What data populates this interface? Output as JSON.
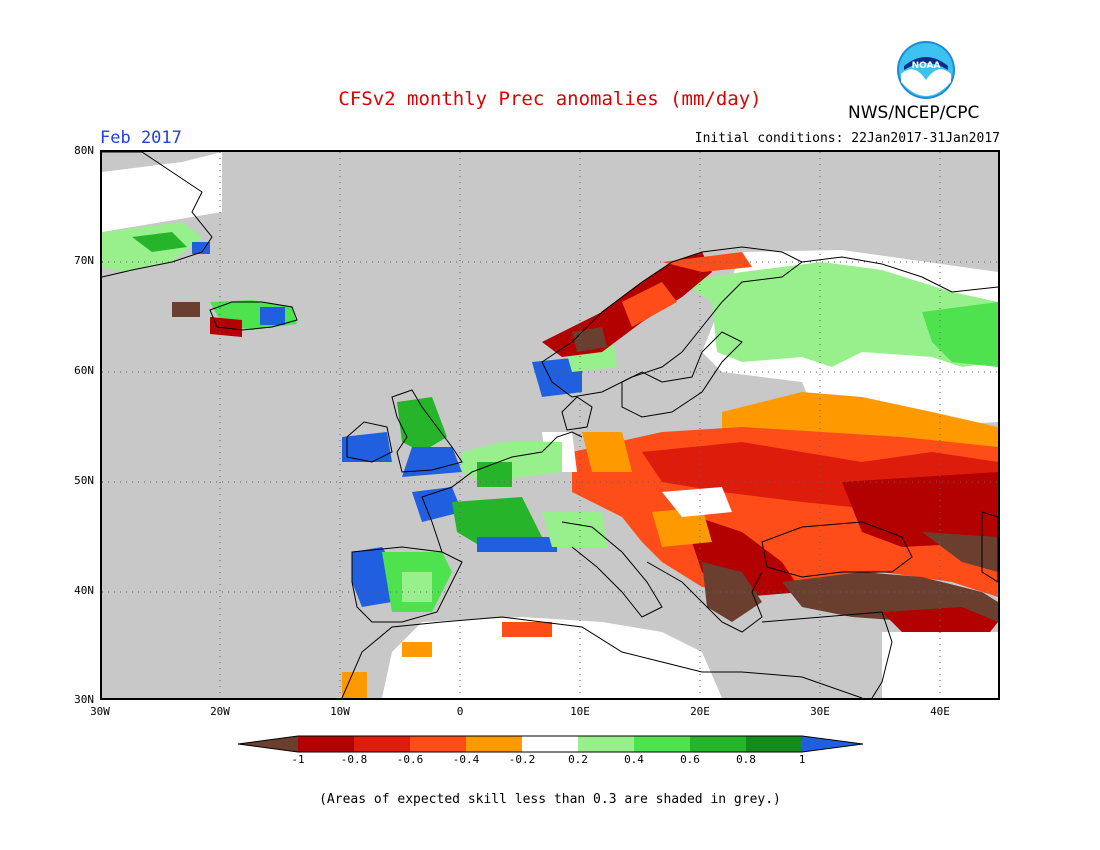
{
  "header": {
    "title": "CFSv2 monthly Prec anomalies (mm/day)",
    "agency": "NWS/NCEP/CPC",
    "logo_text": "NOAA",
    "month": "Feb 2017",
    "initial_conditions": "Initial conditions: 22Jan2017-31Jan2017"
  },
  "axes": {
    "lat_labels": [
      "80N",
      "70N",
      "60N",
      "50N",
      "40N",
      "30N"
    ],
    "lon_labels": [
      "30W",
      "20W",
      "10W",
      "0",
      "10E",
      "20E",
      "30E",
      "40E"
    ]
  },
  "colorbar": {
    "ticks": [
      "-1",
      "-0.8",
      "-0.6",
      "-0.4",
      "-0.2",
      "0.2",
      "0.4",
      "0.6",
      "0.8",
      "1"
    ],
    "colors": [
      "#6b3f2f",
      "#b30000",
      "#dd1c0c",
      "#ff4d1a",
      "#ff9900",
      "#ffffff",
      "#98f08c",
      "#4ee24e",
      "#26b42a",
      "#148c1c",
      "#2060e0"
    ]
  },
  "footnote": "(Areas of expected skill less than 0.3 are shaded in grey.)"
}
